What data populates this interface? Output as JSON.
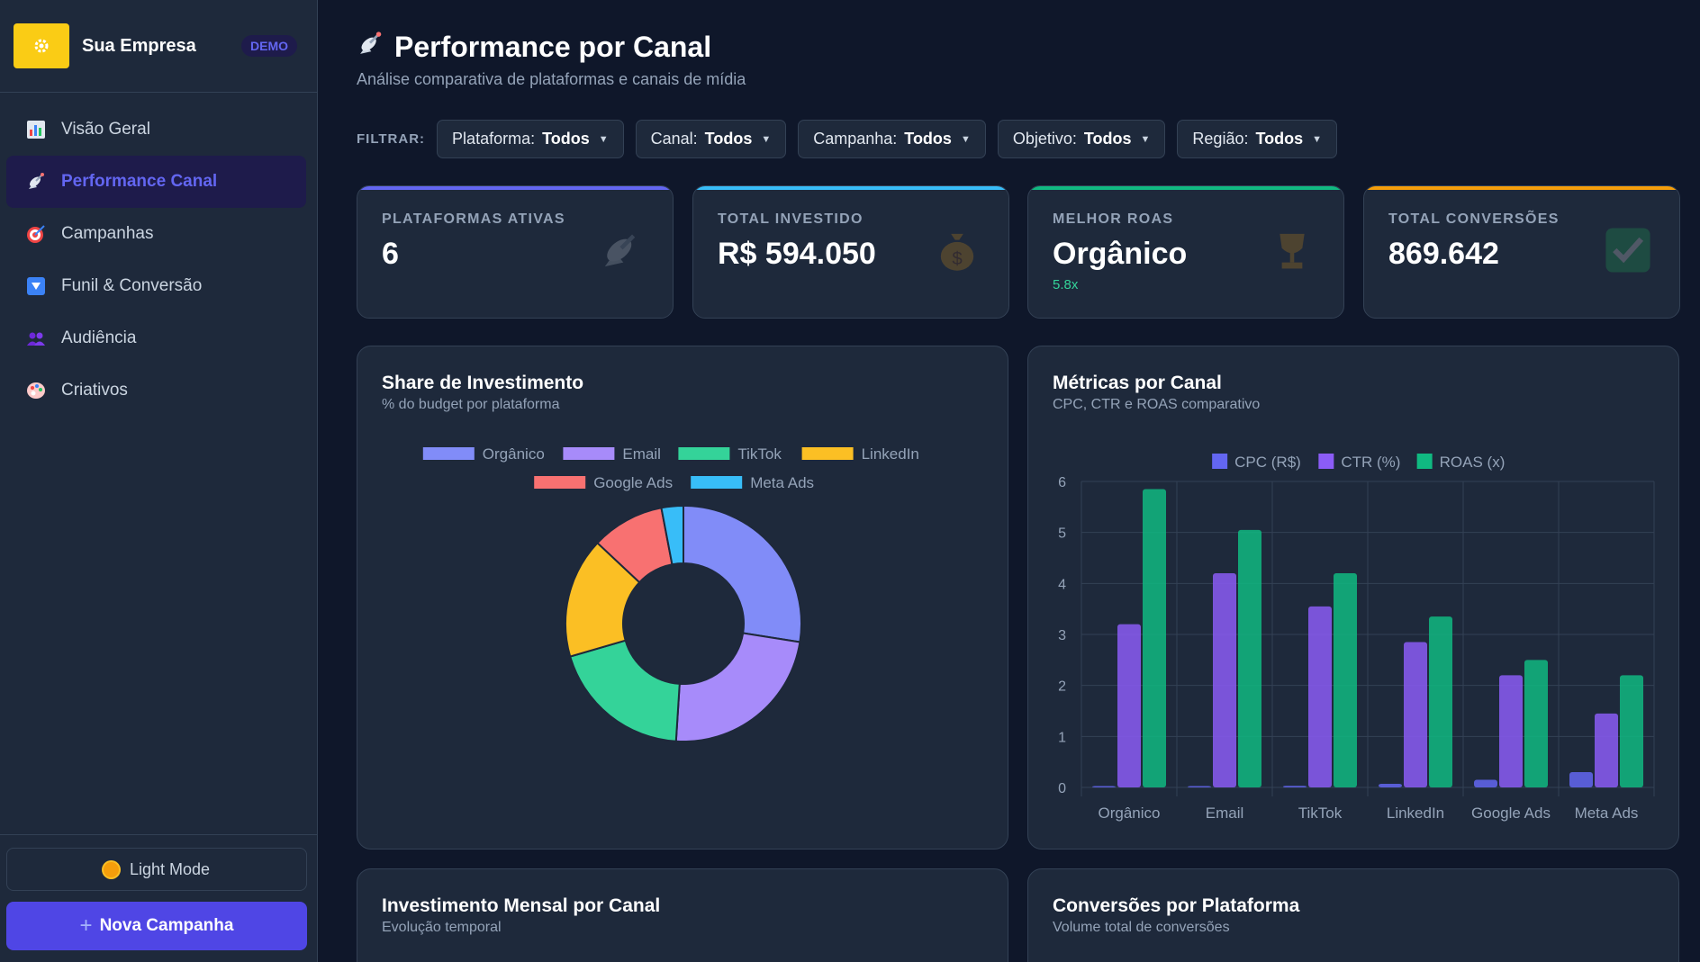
{
  "brand": {
    "logo_icon": "gear-icon",
    "name": "Sua Empresa",
    "badge": "DEMO"
  },
  "nav": [
    {
      "label": "Visão Geral",
      "icon": "bar-chart-icon",
      "active": false
    },
    {
      "label": "Performance Canal",
      "icon": "satellite-dish-icon",
      "active": true
    },
    {
      "label": "Campanhas",
      "icon": "target-icon",
      "active": false
    },
    {
      "label": "Funil & Conversão",
      "icon": "funnel-icon",
      "active": false
    },
    {
      "label": "Audiência",
      "icon": "people-icon",
      "active": false
    },
    {
      "label": "Criativos",
      "icon": "palette-icon",
      "active": false
    }
  ],
  "sidebar_bottom": {
    "mode_label": "Light Mode",
    "new_label": "Nova Campanha"
  },
  "header": {
    "title": "Performance por Canal",
    "subtitle": "Análise comparativa de plataformas e canais de mídia"
  },
  "filters": {
    "label": "FILTRAR:",
    "items": [
      {
        "name": "Plataforma:",
        "value": "Todos"
      },
      {
        "name": "Canal:",
        "value": "Todos"
      },
      {
        "name": "Campanha:",
        "value": "Todos"
      },
      {
        "name": "Objetivo:",
        "value": "Todos"
      },
      {
        "name": "Região:",
        "value": "Todos"
      }
    ]
  },
  "kpis": [
    {
      "label": "PLATAFORMAS ATIVAS",
      "value": "6",
      "sub": "",
      "color": "#6366f1",
      "icon": "satellite-dish-icon"
    },
    {
      "label": "TOTAL INVESTIDO",
      "value": "R$ 594.050",
      "sub": "",
      "color": "#38bdf8",
      "icon": "money-bag-icon"
    },
    {
      "label": "MELHOR ROAS",
      "value": "Orgânico",
      "sub": "5.8x",
      "color": "#10b981",
      "icon": "trophy-icon"
    },
    {
      "label": "TOTAL CONVERSÕES",
      "value": "869.642",
      "sub": "",
      "color": "#f59e0b",
      "icon": "check-icon"
    }
  ],
  "panels": {
    "share": {
      "title": "Share de Investimento",
      "subtitle": "% do budget por plataforma"
    },
    "metrics": {
      "title": "Métricas por Canal",
      "subtitle": "CPC, CTR e ROAS comparativo"
    },
    "monthly": {
      "title": "Investimento Mensal por Canal",
      "subtitle": "Evolução temporal"
    },
    "conversions": {
      "title": "Conversões por Plataforma",
      "subtitle": "Volume total de conversões"
    }
  },
  "chart_data": [
    {
      "type": "pie",
      "title": "Share de Investimento",
      "subtitle": "% do budget por plataforma",
      "legend_position": "top",
      "categories": [
        "Orgânico",
        "Email",
        "TikTok",
        "LinkedIn",
        "Google Ads",
        "Meta Ads"
      ],
      "values": [
        27.5,
        23.5,
        19.5,
        16.5,
        10,
        3
      ],
      "colors": [
        "#818cf8",
        "#a78bfa",
        "#34d399",
        "#fbbf24",
        "#f87171",
        "#38bdf8"
      ]
    },
    {
      "type": "bar",
      "title": "Métricas por Canal",
      "subtitle": "CPC, CTR e ROAS comparativo",
      "legend_position": "top",
      "categories": [
        "Orgânico",
        "Email",
        "TikTok",
        "LinkedIn",
        "Google Ads",
        "Meta Ads"
      ],
      "series": [
        {
          "name": "CPC (R$)",
          "color": "#6366f1",
          "values": [
            0.02,
            0.02,
            0.03,
            0.07,
            0.15,
            0.3
          ]
        },
        {
          "name": "CTR (%)",
          "color": "#8b5cf6",
          "values": [
            3.2,
            4.2,
            3.55,
            2.85,
            2.2,
            1.45
          ]
        },
        {
          "name": "ROAS (x)",
          "color": "#10b981",
          "values": [
            5.85,
            5.05,
            4.2,
            3.35,
            2.5,
            2.2
          ]
        }
      ],
      "ylim": [
        0,
        6
      ],
      "yticks": [
        "0",
        "1",
        "2",
        "3",
        "4",
        "5",
        "6"
      ],
      "grid": true
    }
  ]
}
